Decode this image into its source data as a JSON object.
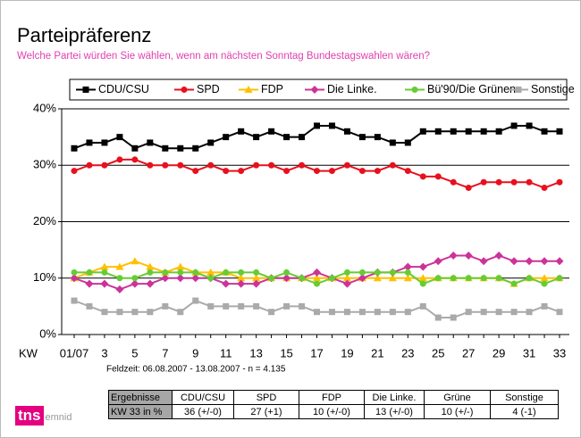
{
  "chart_data": {
    "type": "line",
    "title": "Parteipräferenz",
    "subtitle": "Welche Partei würden Sie wählen, wenn am nächsten Sonntag Bundestagswahlen wären?",
    "x_label": "KW",
    "note": "Feldzeit: 06.08.2007 - 13.08.2007 - n = 4.135",
    "categories": [
      "01/07",
      null,
      "3",
      null,
      "5",
      null,
      "7",
      null,
      "9",
      null,
      "11",
      null,
      "13",
      null,
      "15",
      null,
      "17",
      null,
      "19",
      null,
      "21",
      null,
      "23",
      null,
      "25",
      null,
      "27",
      null,
      "29",
      null,
      "31",
      null,
      "33"
    ],
    "series": [
      {
        "name": "CDU/CSU",
        "color": "#000000",
        "marker": "square",
        "values": [
          33,
          34,
          34,
          35,
          33,
          34,
          33,
          33,
          33,
          34,
          35,
          36,
          35,
          36,
          35,
          35,
          37,
          37,
          36,
          35,
          35,
          34,
          34,
          36,
          36,
          36,
          36,
          36,
          36,
          37,
          37,
          36,
          36
        ]
      },
      {
        "name": "SPD",
        "color": "#e8101e",
        "marker": "circle",
        "values": [
          29,
          30,
          30,
          31,
          31,
          30,
          30,
          30,
          29,
          30,
          29,
          29,
          30,
          30,
          29,
          30,
          29,
          29,
          30,
          29,
          29,
          30,
          29,
          28,
          28,
          27,
          26,
          27,
          27,
          27,
          27,
          26,
          27
        ]
      },
      {
        "name": "FDP",
        "color": "#ffc000",
        "marker": "triangle",
        "values": [
          10,
          11,
          12,
          12,
          13,
          12,
          11,
          12,
          11,
          11,
          11,
          10,
          10,
          10,
          10,
          10,
          10,
          10,
          10,
          10,
          10,
          10,
          10,
          10,
          10,
          10,
          10,
          10,
          10,
          9,
          10,
          10,
          10
        ]
      },
      {
        "name": "Die Linke.",
        "color": "#cc3399",
        "marker": "diamond",
        "values": [
          10,
          9,
          9,
          8,
          9,
          9,
          10,
          10,
          10,
          10,
          9,
          9,
          9,
          10,
          10,
          10,
          11,
          10,
          9,
          10,
          11,
          11,
          12,
          12,
          13,
          14,
          14,
          13,
          14,
          13,
          13,
          13,
          13
        ]
      },
      {
        "name": "Bü'90/Die Grünen",
        "color": "#66cc33",
        "marker": "circle",
        "values": [
          11,
          11,
          11,
          10,
          10,
          11,
          11,
          11,
          11,
          10,
          11,
          11,
          11,
          10,
          11,
          10,
          9,
          10,
          11,
          11,
          11,
          11,
          11,
          9,
          10,
          10,
          10,
          10,
          10,
          9,
          10,
          9,
          10
        ]
      },
      {
        "name": "Sonstige",
        "color": "#aaaaaa",
        "marker": "square",
        "values": [
          6,
          5,
          4,
          4,
          4,
          4,
          5,
          4,
          6,
          5,
          5,
          5,
          5,
          4,
          5,
          5,
          4,
          4,
          4,
          4,
          4,
          4,
          4,
          5,
          3,
          3,
          4,
          4,
          4,
          4,
          4,
          5,
          4
        ]
      }
    ],
    "ylim": [
      0,
      40
    ],
    "yticks": [
      {
        "value": 0,
        "label": "0%"
      },
      {
        "value": 10,
        "label": "10%"
      },
      {
        "value": 20,
        "label": "20%"
      },
      {
        "value": 30,
        "label": "30%"
      },
      {
        "value": 40,
        "label": "40%"
      }
    ],
    "grid": true,
    "legend": "top"
  },
  "table": {
    "rows": [
      [
        "Ergebnisse",
        "CDU/CSU",
        "SPD",
        "FDP",
        "Die Linke.",
        "Grüne",
        "Sonstige"
      ],
      [
        "KW 33 in %",
        "36 (+/-0)",
        "27 (+1)",
        "10 (+/-0)",
        "13 (+/-0)",
        "10 (+/-)",
        "4 (-1)"
      ]
    ]
  },
  "logo": {
    "brand": "tns",
    "sub": "emnid"
  }
}
